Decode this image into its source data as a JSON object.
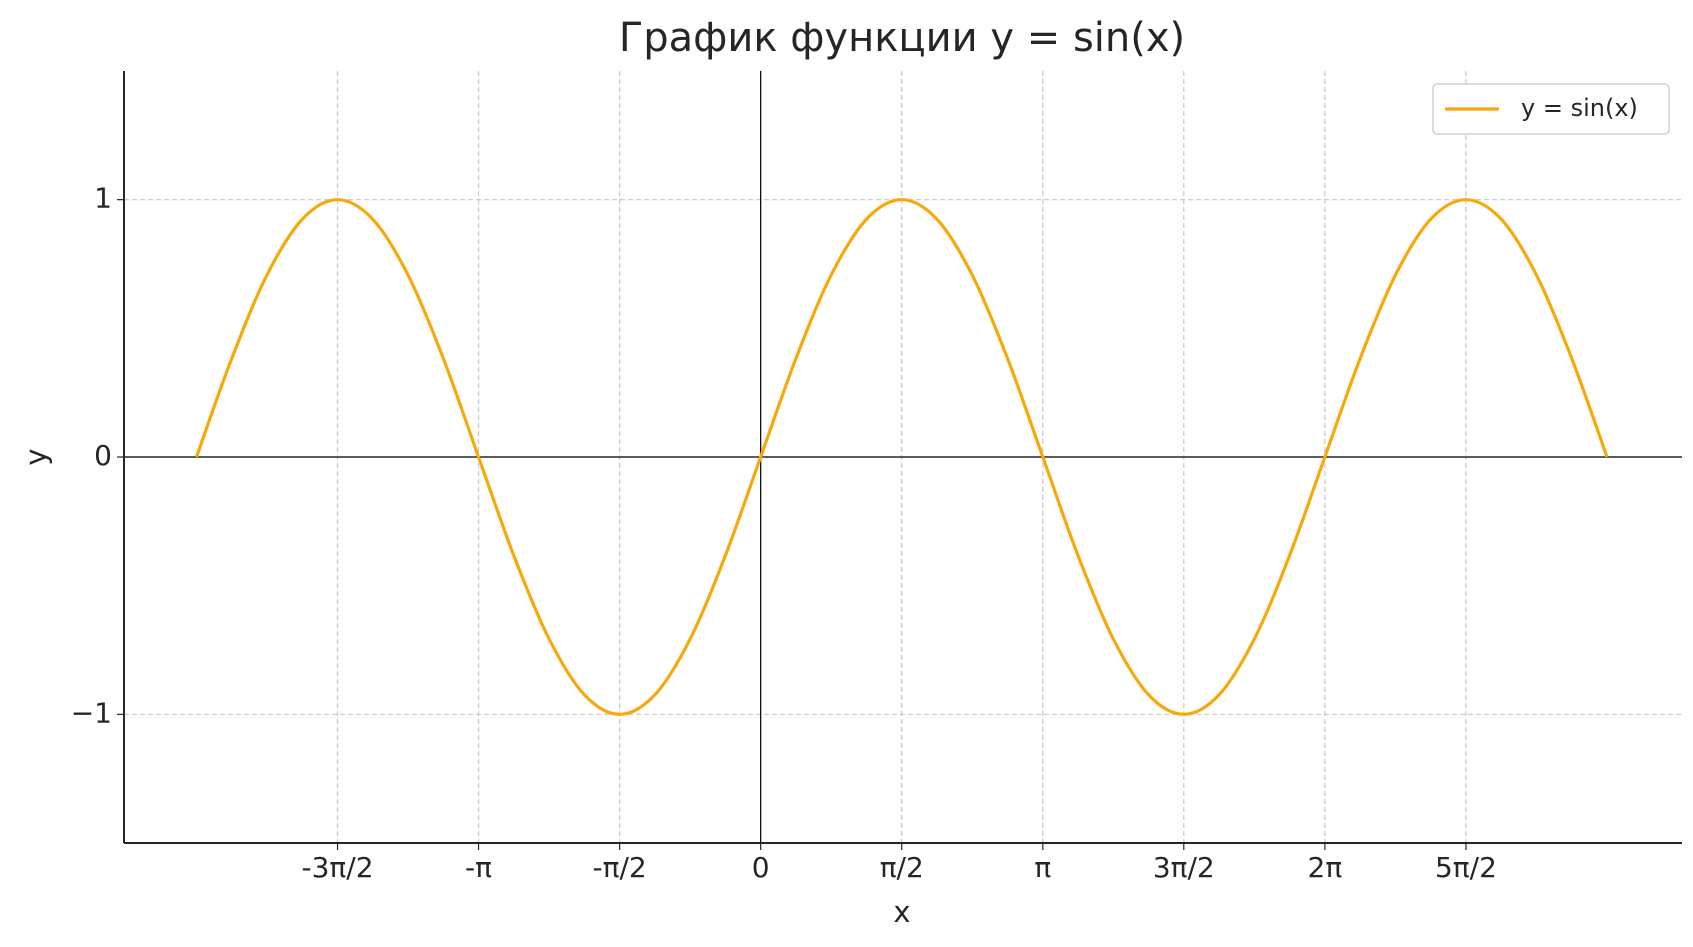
{
  "chart_data": {
    "type": "line",
    "title": "График функции y = sin(x)",
    "xlabel": "x",
    "ylabel": "y",
    "x": [
      -6.283,
      -5.89,
      -5.498,
      -5.105,
      -4.712,
      -4.32,
      -3.927,
      -3.534,
      -3.142,
      -2.749,
      -2.356,
      -1.963,
      -1.571,
      -1.178,
      -0.785,
      -0.393,
      0,
      0.393,
      0.785,
      1.178,
      1.571,
      1.963,
      2.356,
      2.749,
      3.142,
      3.534,
      3.927,
      4.32,
      4.712,
      5.105,
      5.498,
      5.89,
      6.283,
      6.676,
      7.069,
      7.461,
      7.854,
      8.247,
      8.639,
      9.032,
      9.425
    ],
    "series": [
      {
        "name": "y = sin(x)",
        "color": "#f7a90c",
        "values": [
          0,
          0.383,
          0.707,
          0.924,
          1,
          0.924,
          0.707,
          0.383,
          0,
          -0.383,
          -0.707,
          -0.924,
          -1,
          -0.924,
          -0.707,
          -0.383,
          0,
          0.383,
          0.707,
          0.924,
          1,
          0.924,
          0.707,
          0.383,
          0,
          -0.383,
          -0.707,
          -0.924,
          -1,
          -0.924,
          -0.707,
          -0.383,
          0,
          0.383,
          0.707,
          0.924,
          1,
          0.924,
          0.707,
          0.383,
          0
        ]
      }
    ],
    "xlim": [
      -7.09,
      10.26
    ],
    "ylim": [
      -1.5,
      1.5
    ],
    "xticks": [
      {
        "value": -4.712,
        "label": "-3π/2"
      },
      {
        "value": -3.142,
        "label": "-π"
      },
      {
        "value": -1.571,
        "label": "-π/2"
      },
      0,
      {
        "value": 1.571,
        "label": "π/2"
      },
      {
        "value": 3.142,
        "label": "π"
      },
      {
        "value": 4.712,
        "label": "3π/2"
      },
      {
        "value": 6.283,
        "label": "2π"
      },
      {
        "value": 7.854,
        "label": "5π/2"
      }
    ],
    "yticks": [
      {
        "value": -1,
        "label": "−1"
      },
      0,
      1
    ],
    "grid": true,
    "legend": "upper right"
  }
}
